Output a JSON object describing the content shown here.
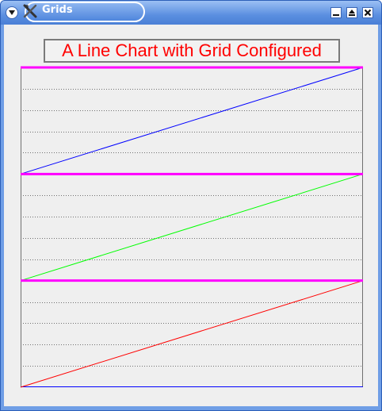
{
  "window": {
    "title": "Grids",
    "icon": "x-tools-icon"
  },
  "colors": {
    "title": "#ff0000",
    "major_grid": "#ff00ff",
    "minor_grid": "#707070",
    "series_top": "#0000ff",
    "series_middle": "#00ff00",
    "series_bottom": "#ff0000",
    "x_axis": "#0000ff"
  },
  "chart_data": {
    "type": "line",
    "title": "A Line Chart with Grid Configured",
    "xlabel": "",
    "ylabel": "",
    "xlim": [
      0,
      1
    ],
    "ylim": [
      0,
      3
    ],
    "grid": true,
    "major_grid_y": [
      1,
      2,
      3
    ],
    "minor_grid_step": 0.2,
    "tick_labels_visible": false,
    "legend": false,
    "series": [
      {
        "x": [
          0,
          1
        ],
        "values": [
          2,
          3
        ],
        "color": "#0000ff"
      },
      {
        "x": [
          0,
          1
        ],
        "values": [
          1,
          2
        ],
        "color": "#00ff00"
      },
      {
        "x": [
          0,
          1
        ],
        "values": [
          0,
          1
        ],
        "color": "#ff0000"
      }
    ]
  }
}
